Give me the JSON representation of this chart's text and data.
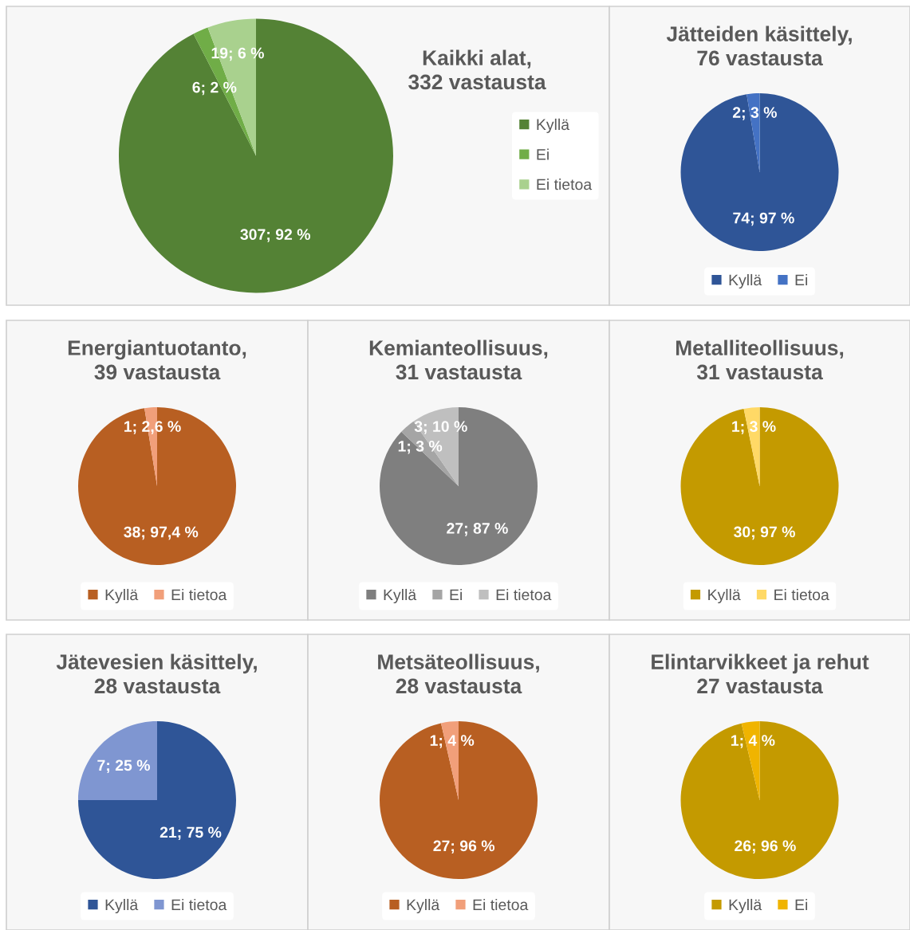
{
  "chart_data": [
    {
      "type": "pie",
      "title": "Kaikki alat,\n332 vastausta",
      "categories": [
        "Kyllä",
        "Ei",
        "Ei tietoa"
      ],
      "values": [
        307,
        6,
        19
      ],
      "colors": [
        "#548235",
        "#70ad47",
        "#a9d18e"
      ],
      "value_labels": [
        "307; 92 %",
        "6; 2 %",
        "19; 6 %"
      ],
      "legend": "right"
    },
    {
      "type": "pie",
      "title": "Jätteiden käsittely,\n76 vastausta",
      "categories": [
        "Kyllä",
        "Ei"
      ],
      "values": [
        74,
        2
      ],
      "colors": [
        "#2f5597",
        "#4472c4"
      ],
      "value_labels": [
        "74; 97 %",
        "2; 3 %"
      ],
      "legend": "bottom"
    },
    {
      "type": "pie",
      "title": "Energiantuotanto,\n39 vastausta",
      "categories": [
        "Kyllä",
        "Ei tietoa"
      ],
      "values": [
        38,
        1
      ],
      "colors": [
        "#b85f22",
        "#f19f7a"
      ],
      "value_labels": [
        "38; 97,4 %",
        "1; 2,6 %"
      ],
      "legend": "bottom"
    },
    {
      "type": "pie",
      "title": "Kemianteollisuus,\n31 vastausta",
      "categories": [
        "Kyllä",
        "Ei",
        "Ei tietoa"
      ],
      "values": [
        27,
        1,
        3
      ],
      "colors": [
        "#7f7f7f",
        "#a5a5a5",
        "#bfbfbf"
      ],
      "value_labels": [
        "27; 87 %",
        "1; 3 %",
        "3; 10 %"
      ],
      "legend": "bottom"
    },
    {
      "type": "pie",
      "title": "Metalliteollisuus,\n31 vastausta",
      "categories": [
        "Kyllä",
        "Ei tietoa"
      ],
      "values": [
        30,
        1
      ],
      "colors": [
        "#c49a00",
        "#ffd966"
      ],
      "value_labels": [
        "30; 97 %",
        "1; 3 %"
      ],
      "legend": "bottom"
    },
    {
      "type": "pie",
      "title": "Jätevesien käsittely,\n28 vastausta",
      "categories": [
        "Kyllä",
        "Ei tietoa"
      ],
      "values": [
        21,
        7
      ],
      "colors": [
        "#2f5597",
        "#7f96d1"
      ],
      "value_labels": [
        "21; 75 %",
        "7; 25 %"
      ],
      "legend": "bottom"
    },
    {
      "type": "pie",
      "title": "Metsäteollisuus,\n28 vastausta",
      "categories": [
        "Kyllä",
        "Ei tietoa"
      ],
      "values": [
        27,
        1
      ],
      "colors": [
        "#b85f22",
        "#f19f7a"
      ],
      "value_labels": [
        "27; 96 %",
        "1; 4 %"
      ],
      "legend": "bottom"
    },
    {
      "type": "pie",
      "title": "Elintarvikkeet ja rehut\n27 vastausta",
      "categories": [
        "Kyllä",
        "Ei"
      ],
      "values": [
        26,
        1
      ],
      "colors": [
        "#c49a00",
        "#f0b400"
      ],
      "value_labels": [
        "26; 96 %",
        "1; 4 %"
      ],
      "legend": "bottom"
    }
  ]
}
